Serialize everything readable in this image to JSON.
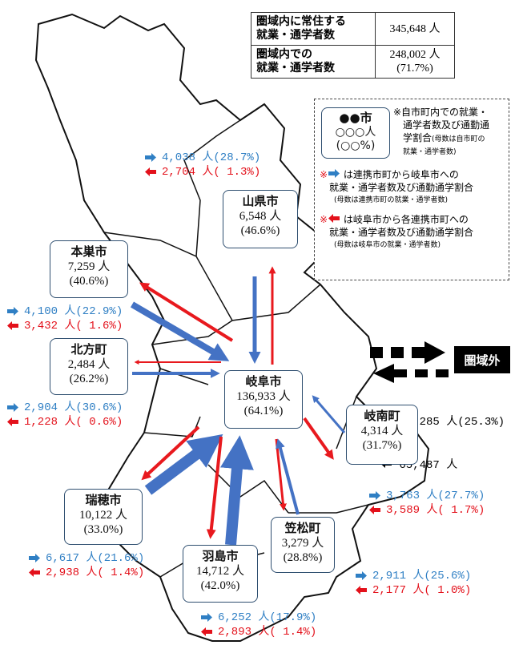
{
  "summary_table": {
    "rows": [
      {
        "label": [
          "圏域内に常住する",
          "就業・通学者数"
        ],
        "value": [
          "345,648 人"
        ]
      },
      {
        "label": [
          "圏域内での",
          "就業・通学者数"
        ],
        "value": [
          "248,002 人",
          "(71.7%)"
        ]
      }
    ]
  },
  "legend": {
    "sample": {
      "name": "●●市",
      "count": "○○○人",
      "share": "(○○%)"
    },
    "note_self": {
      "lines": [
        "※自市町内での就業・",
        "通学者数及び通勤通",
        "学割合"
      ],
      "small": [
        "(母数は自市町の",
        "就業・通学者数)"
      ]
    },
    "note_in": {
      "mark": "※",
      "lines": [
        "は連携市町から岐阜市への",
        "就業・通学者数及び通勤通学割合"
      ],
      "small": "(母数は連携市町の就業・通学者数)"
    },
    "note_out": {
      "mark": "※",
      "lines": [
        "は岐阜市から各連携市町への",
        "就業・通学者数及び通勤通学割合"
      ],
      "small": "(母数は岐阜市の就業・通学者数)"
    }
  },
  "cities": [
    {
      "name": "本巣市",
      "count": "7,259 人",
      "share": "(40.6%)",
      "inflow": "4,100 人(22.9%)",
      "outflow": "3,432 人( 1.6%)"
    },
    {
      "name": "山県市",
      "count": "6,548 人",
      "share": "(46.6%)",
      "inflow": "4,038 人(28.7%)",
      "outflow": "2,704 人( 1.3%)"
    },
    {
      "name": "北方町",
      "count": "2,484 人",
      "share": "(26.2%)",
      "inflow": "2,904 人(30.6%)",
      "outflow": "1,228 人( 0.6%)"
    },
    {
      "name": "岐阜市",
      "count": "136,933 人",
      "share": "(64.1%)"
    },
    {
      "name": "岐南町",
      "count": "4,314 人",
      "share": "(31.7%)",
      "inflow": "3,763 人(27.7%)",
      "outflow": "3,589 人( 1.7%)"
    },
    {
      "name": "瑞穂市",
      "count": "10,122 人",
      "share": "(33.0%)",
      "inflow": "6,617 人(21.6%)",
      "outflow": "2,938 人( 1.4%)"
    },
    {
      "name": "笠松町",
      "count": "3,279 人",
      "share": "(28.8%)",
      "inflow": "2,911 人(25.6%)",
      "outflow": "2,177 人( 1.0%)"
    },
    {
      "name": "羽島市",
      "count": "14,712 人",
      "share": "(42.0%)",
      "inflow": "6,252 人(17.9%)",
      "outflow": "2,893 人( 1.4%)"
    }
  ],
  "outside": {
    "label": "圏域外",
    "inflow": "87,285 人(25.3%)",
    "outflow": "65,487 人"
  }
}
